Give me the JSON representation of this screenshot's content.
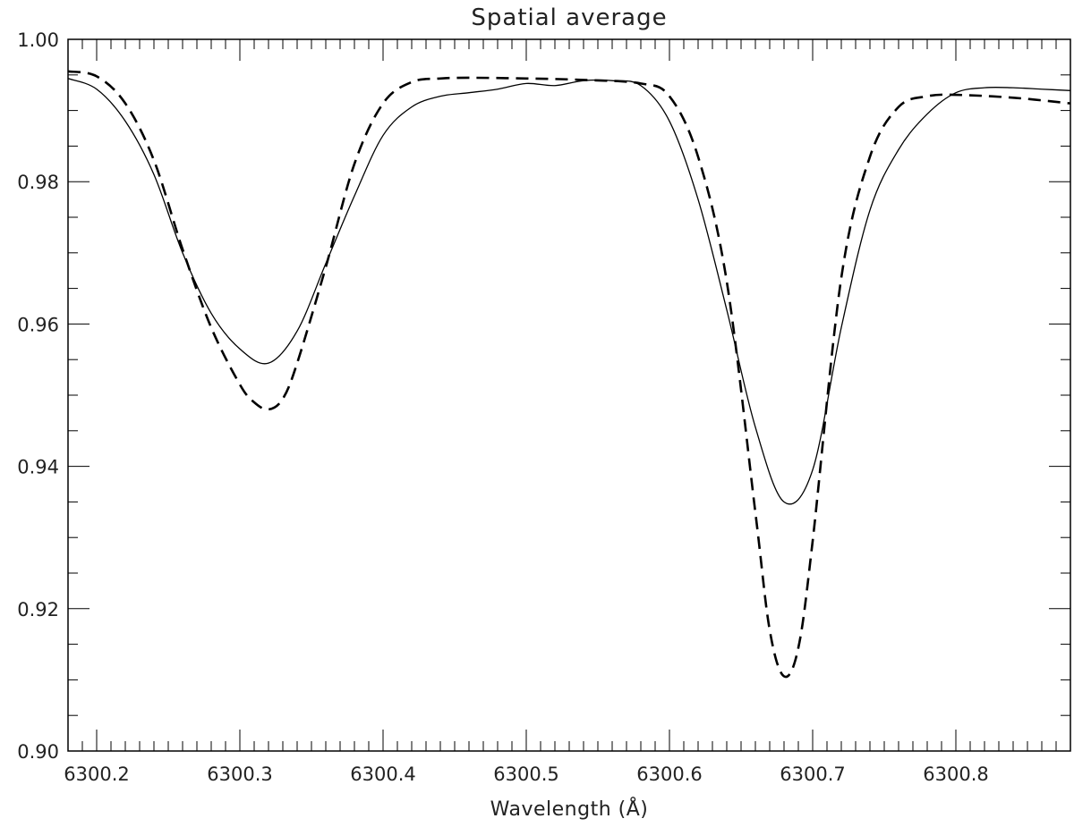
{
  "chart_data": {
    "type": "line",
    "title": "Spatial average",
    "xlabel": "Wavelength (Å)",
    "ylabel": "",
    "xlim": [
      6300.18,
      6300.88
    ],
    "ylim": [
      0.9,
      1.0
    ],
    "x_ticks": [
      "6300.2",
      "6300.3",
      "6300.4",
      "6300.5",
      "6300.6",
      "6300.7",
      "6300.8"
    ],
    "y_ticks": [
      "0.90",
      "0.92",
      "0.94",
      "0.96",
      "0.98",
      "1.00"
    ],
    "grid": false,
    "series": [
      {
        "style": "solid",
        "color": "#000000",
        "x": [
          6300.18,
          6300.2,
          6300.22,
          6300.24,
          6300.26,
          6300.28,
          6300.3,
          6300.32,
          6300.34,
          6300.36,
          6300.38,
          6300.4,
          6300.42,
          6300.44,
          6300.46,
          6300.48,
          6300.5,
          6300.52,
          6300.54,
          6300.56,
          6300.58,
          6300.6,
          6300.62,
          6300.64,
          6300.66,
          6300.68,
          6300.7,
          6300.72,
          6300.74,
          6300.76,
          6300.78,
          6300.8,
          6300.82,
          6300.84,
          6300.86,
          6300.88
        ],
        "y": [
          0.9945,
          0.993,
          0.9885,
          0.981,
          0.97,
          0.9615,
          0.9565,
          0.9545,
          0.959,
          0.9685,
          0.978,
          0.9865,
          0.9905,
          0.992,
          0.9925,
          0.993,
          0.9938,
          0.9935,
          0.9942,
          0.9942,
          0.9935,
          0.9885,
          0.9775,
          0.962,
          0.9455,
          0.935,
          0.9395,
          0.9595,
          0.976,
          0.9845,
          0.9895,
          0.9925,
          0.9932,
          0.9932,
          0.993,
          0.9928
        ]
      },
      {
        "style": "dashed",
        "color": "#000000",
        "x": [
          6300.18,
          6300.2,
          6300.22,
          6300.24,
          6300.26,
          6300.28,
          6300.3,
          6300.31,
          6300.32,
          6300.33,
          6300.34,
          6300.36,
          6300.38,
          6300.4,
          6300.42,
          6300.44,
          6300.46,
          6300.5,
          6300.54,
          6300.58,
          6300.6,
          6300.62,
          6300.64,
          6300.66,
          6300.67,
          6300.68,
          6300.69,
          6300.7,
          6300.72,
          6300.74,
          6300.76,
          6300.78,
          6300.8,
          6300.84,
          6300.88
        ],
        "y": [
          0.9955,
          0.9948,
          0.991,
          0.983,
          0.9705,
          0.9595,
          0.9515,
          0.949,
          0.948,
          0.9495,
          0.9545,
          0.968,
          0.9825,
          0.991,
          0.994,
          0.9945,
          0.9946,
          0.9945,
          0.9943,
          0.9938,
          0.992,
          0.9835,
          0.966,
          0.9335,
          0.917,
          0.9105,
          0.9145,
          0.9295,
          0.9665,
          0.9835,
          0.9905,
          0.992,
          0.9922,
          0.9918,
          0.991
        ]
      }
    ]
  }
}
